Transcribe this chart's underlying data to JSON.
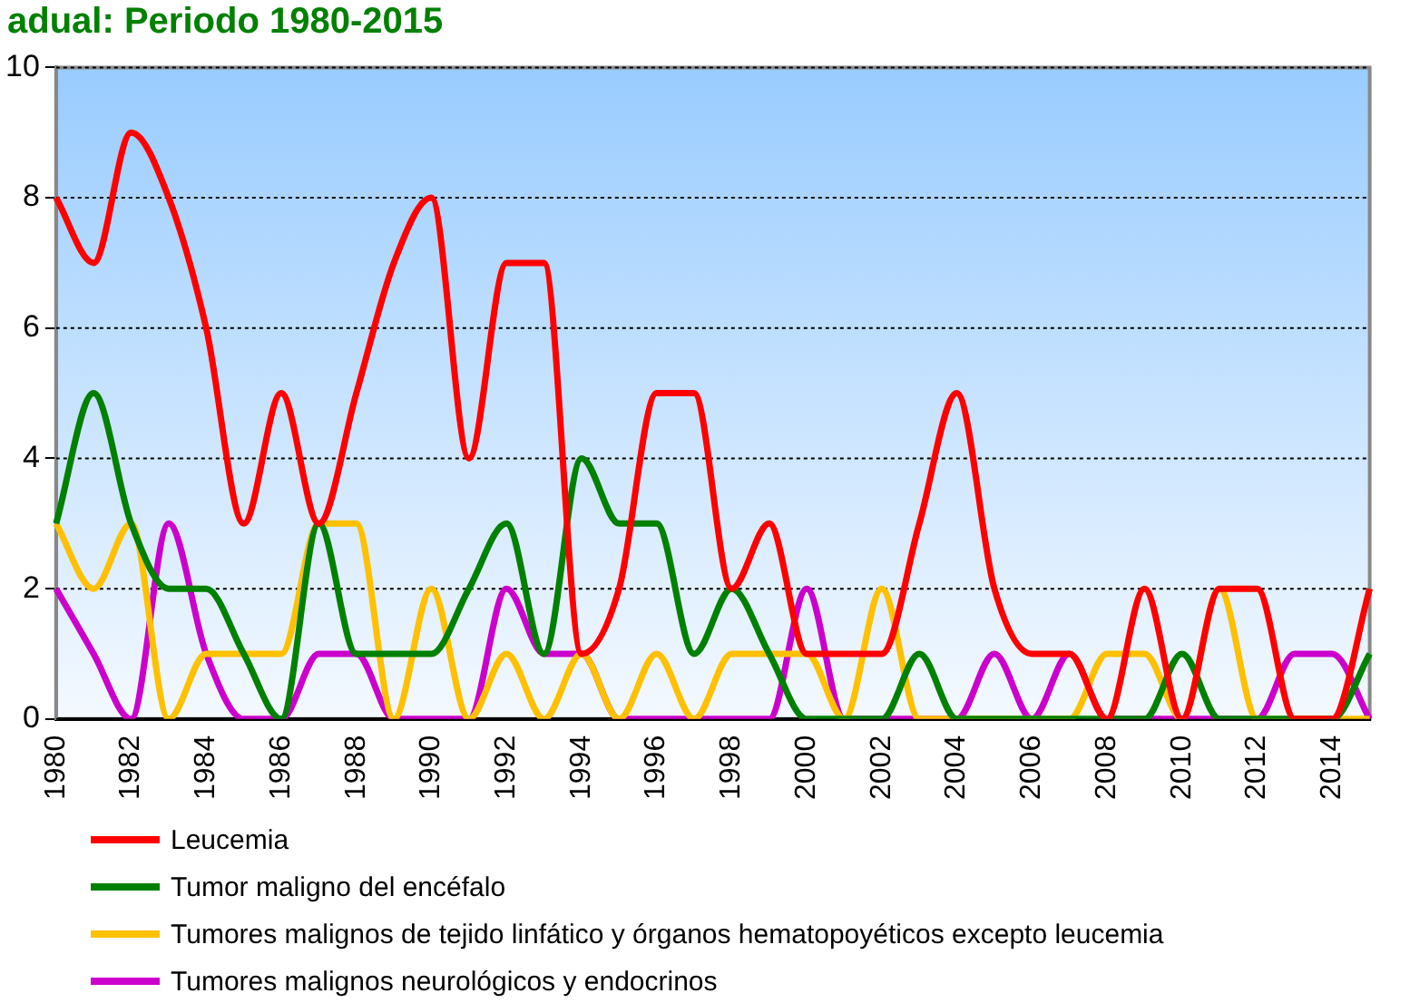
{
  "chart_data": {
    "type": "line",
    "title": "adual: Periodo 1980-2015",
    "categories": [
      "1980",
      null,
      "1982",
      null,
      "1984",
      null,
      "1986",
      null,
      "1988",
      null,
      "1990",
      null,
      "1992",
      null,
      "1994",
      null,
      "1996",
      null,
      "1998",
      null,
      "2000",
      null,
      "2002",
      null,
      "2004",
      null,
      "2006",
      null,
      "2008",
      null,
      "2010",
      null,
      "2012",
      null,
      "2014",
      null
    ],
    "series": [
      {
        "name": "Leucemia",
        "color": "#ff0000",
        "values": [
          8,
          7,
          9,
          8,
          6,
          3,
          5,
          3,
          5,
          7,
          8,
          4,
          7,
          7,
          1,
          2,
          5,
          5,
          2,
          3,
          1,
          1,
          1,
          3,
          5,
          2,
          1,
          1,
          0,
          2,
          0,
          2,
          2,
          0,
          0,
          2
        ]
      },
      {
        "name": "Tumor maligno del encéfalo",
        "color": "#008000",
        "values": [
          3,
          5,
          3,
          2,
          2,
          1,
          0,
          3,
          1,
          1,
          1,
          2,
          3,
          1,
          4,
          3,
          3,
          1,
          2,
          1,
          0,
          0,
          0,
          1,
          0,
          0,
          0,
          0,
          0,
          0,
          1,
          0,
          0,
          0,
          0,
          1
        ]
      },
      {
        "name": "Tumores malignos de tejido linfático y órganos hematopoyéticos excepto leucemia",
        "color": "#ffc000",
        "values": [
          3,
          2,
          3,
          0,
          1,
          1,
          1,
          3,
          3,
          0,
          2,
          0,
          1,
          0,
          1,
          0,
          1,
          0,
          1,
          1,
          1,
          0,
          2,
          0,
          0,
          0,
          0,
          0,
          1,
          1,
          0,
          2,
          0,
          0,
          0,
          0
        ]
      },
      {
        "name": "Tumores malignos neurológicos y endocrinos",
        "color": "#cc00cc",
        "values": [
          2,
          1,
          0,
          3,
          1,
          0,
          0,
          1,
          1,
          0,
          0,
          0,
          2,
          1,
          1,
          0,
          0,
          0,
          0,
          0,
          2,
          0,
          0,
          0,
          0,
          1,
          0,
          1,
          0,
          0,
          0,
          0,
          0,
          1,
          1,
          0
        ]
      }
    ],
    "ylim": [
      0,
      10
    ],
    "yticks": [
      0,
      2,
      4,
      6,
      8,
      10
    ],
    "grid": "y",
    "legend": "bottom",
    "marker": "none",
    "line_style": "solid"
  }
}
